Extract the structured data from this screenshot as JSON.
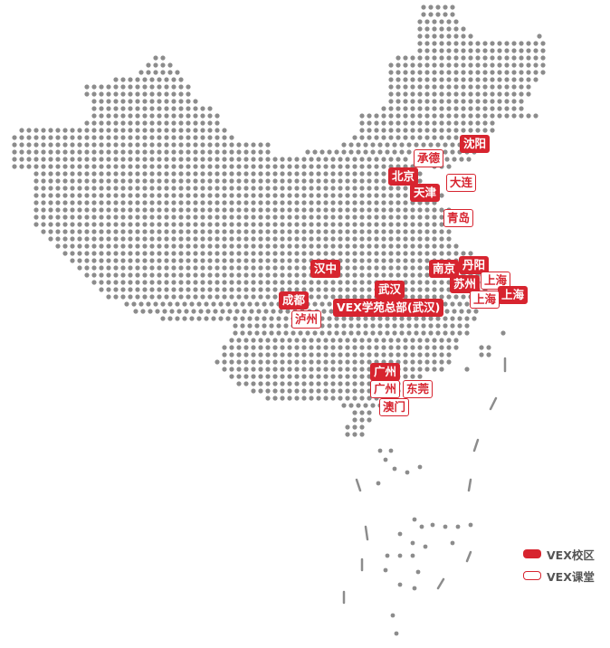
{
  "colors": {
    "accent": "#d7242f",
    "dot": "#8c8c8c"
  },
  "cities": [
    {
      "name": "沈阳",
      "type": "campus"
    },
    {
      "name": "承德",
      "type": "class"
    },
    {
      "name": "北京",
      "type": "campus"
    },
    {
      "name": "大连",
      "type": "class"
    },
    {
      "name": "天津",
      "type": "campus"
    },
    {
      "name": "青岛",
      "type": "class"
    },
    {
      "name": "汉中",
      "type": "campus"
    },
    {
      "name": "南京",
      "type": "campus"
    },
    {
      "name": "丹阳",
      "type": "campus"
    },
    {
      "name": "上海",
      "type": "class"
    },
    {
      "name": "苏州",
      "type": "campus"
    },
    {
      "name": "上海",
      "type": "campus"
    },
    {
      "name": "上海",
      "type": "class"
    },
    {
      "name": "成都",
      "type": "campus"
    },
    {
      "name": "武汉",
      "type": "campus"
    },
    {
      "name": "VEX学苑总部(武汉)",
      "type": "campus"
    },
    {
      "name": "泸州",
      "type": "class"
    },
    {
      "name": "广州",
      "type": "campus"
    },
    {
      "name": "广州",
      "type": "class"
    },
    {
      "name": "东莞",
      "type": "class"
    },
    {
      "name": "澳门",
      "type": "class"
    }
  ],
  "legend": {
    "campus": "VEX校区",
    "class": "VEX课堂"
  }
}
